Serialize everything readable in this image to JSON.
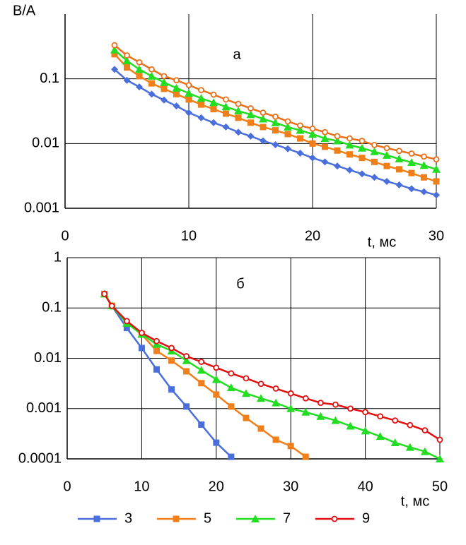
{
  "chart_data": [
    {
      "type": "line",
      "annotation": "а",
      "ylabel": "В/А",
      "xlabel": "t, мс",
      "log_y": true,
      "grid": true,
      "xlim": [
        0,
        30
      ],
      "xticks": [
        0,
        10,
        20,
        30
      ],
      "ylim": [
        0.001,
        1
      ],
      "yticks": [
        0.001,
        0.01,
        0.1
      ],
      "series": [
        {
          "color": "#4a6fdc",
          "marker": "diamond",
          "x": [
            4,
            5,
            6,
            7,
            8,
            9,
            10,
            11,
            12,
            13,
            14,
            15,
            16,
            17,
            18,
            19,
            20,
            21,
            22,
            23,
            24,
            25,
            26,
            27,
            28,
            29,
            30
          ],
          "values": [
            0.14,
            0.095,
            0.075,
            0.058,
            0.047,
            0.038,
            0.03,
            0.025,
            0.021,
            0.018,
            0.015,
            0.013,
            0.011,
            0.0096,
            0.0083,
            0.0071,
            0.006,
            0.0052,
            0.0045,
            0.0039,
            0.0034,
            0.003,
            0.0026,
            0.0023,
            0.002,
            0.0018,
            0.0016
          ]
        },
        {
          "color": "#f07f1a",
          "marker": "square",
          "x": [
            4,
            5,
            6,
            7,
            8,
            9,
            10,
            11,
            12,
            13,
            14,
            15,
            16,
            17,
            18,
            19,
            20,
            21,
            22,
            23,
            24,
            25,
            26,
            27,
            28,
            29,
            30
          ],
          "values": [
            0.24,
            0.15,
            0.11,
            0.085,
            0.07,
            0.058,
            0.048,
            0.04,
            0.034,
            0.029,
            0.025,
            0.021,
            0.018,
            0.016,
            0.014,
            0.012,
            0.01,
            0.0089,
            0.0078,
            0.0068,
            0.006,
            0.0052,
            0.0045,
            0.004,
            0.0035,
            0.003,
            0.0026
          ]
        },
        {
          "color": "#22dd22",
          "marker": "triangle",
          "x": [
            4,
            5,
            6,
            7,
            8,
            9,
            10,
            11,
            12,
            13,
            14,
            15,
            16,
            17,
            18,
            19,
            20,
            21,
            22,
            23,
            24,
            25,
            26,
            27,
            28,
            29,
            30
          ],
          "values": [
            0.28,
            0.19,
            0.14,
            0.11,
            0.088,
            0.072,
            0.06,
            0.05,
            0.043,
            0.037,
            0.032,
            0.028,
            0.024,
            0.021,
            0.018,
            0.016,
            0.014,
            0.012,
            0.011,
            0.0095,
            0.0085,
            0.0075,
            0.0066,
            0.0058,
            0.0051,
            0.0046,
            0.004
          ]
        },
        {
          "color": "#e8701a",
          "marker": "circle",
          "x": [
            4,
            5,
            6,
            7,
            8,
            9,
            10,
            11,
            12,
            13,
            14,
            15,
            16,
            17,
            18,
            19,
            20,
            21,
            22,
            23,
            24,
            25,
            26,
            27,
            28,
            29,
            30
          ],
          "values": [
            0.33,
            0.23,
            0.18,
            0.14,
            0.11,
            0.095,
            0.08,
            0.067,
            0.057,
            0.048,
            0.041,
            0.035,
            0.03,
            0.026,
            0.022,
            0.019,
            0.017,
            0.015,
            0.013,
            0.012,
            0.011,
            0.0095,
            0.0085,
            0.0077,
            0.007,
            0.0063,
            0.0057
          ]
        }
      ]
    },
    {
      "type": "line",
      "annotation": "б",
      "xlabel": "t, мс",
      "log_y": true,
      "grid": true,
      "xlim": [
        0,
        50
      ],
      "xticks": [
        0,
        10,
        20,
        30,
        40,
        50
      ],
      "ylim": [
        0.0001,
        1
      ],
      "yticks": [
        0.0001,
        0.001,
        0.01,
        0.1,
        1
      ],
      "series": [
        {
          "name": "3",
          "color": "#4a6fdc",
          "marker": "square",
          "x": [
            5,
            6,
            8,
            10,
            12,
            14,
            16,
            18,
            20,
            22
          ],
          "values": [
            0.19,
            0.11,
            0.04,
            0.016,
            0.006,
            0.0024,
            0.0011,
            0.00048,
            0.00021,
            0.00011
          ]
        },
        {
          "name": "5",
          "color": "#f07f1a",
          "marker": "square",
          "x": [
            5,
            6,
            8,
            10,
            12,
            14,
            16,
            18,
            20,
            22,
            24,
            26,
            28,
            30,
            32
          ],
          "values": [
            0.19,
            0.11,
            0.05,
            0.03,
            0.014,
            0.009,
            0.0055,
            0.0032,
            0.0019,
            0.0011,
            0.00065,
            0.0004,
            0.00024,
            0.00018,
            0.00011
          ]
        },
        {
          "name": "7",
          "color": "#22dd22",
          "marker": "triangle",
          "x": [
            5,
            6,
            8,
            10,
            12,
            14,
            16,
            18,
            20,
            22,
            24,
            26,
            28,
            30,
            32,
            34,
            36,
            38,
            40,
            42,
            44,
            46,
            48,
            50
          ],
          "values": [
            0.19,
            0.11,
            0.05,
            0.03,
            0.019,
            0.014,
            0.009,
            0.0058,
            0.0038,
            0.0026,
            0.002,
            0.0016,
            0.0013,
            0.001,
            0.00085,
            0.0007,
            0.00058,
            0.00045,
            0.00036,
            0.00028,
            0.00021,
            0.00017,
            0.00014,
            0.0001
          ]
        },
        {
          "name": "9",
          "color": "#e01010",
          "marker": "circle",
          "x": [
            5,
            6,
            8,
            10,
            12,
            14,
            16,
            18,
            20,
            22,
            24,
            26,
            28,
            30,
            32,
            34,
            36,
            38,
            40,
            42,
            44,
            46,
            48,
            50
          ],
          "values": [
            0.19,
            0.11,
            0.055,
            0.032,
            0.022,
            0.016,
            0.011,
            0.0085,
            0.0065,
            0.005,
            0.004,
            0.0031,
            0.0025,
            0.002,
            0.0016,
            0.0013,
            0.0012,
            0.001,
            0.00085,
            0.0007,
            0.00058,
            0.00047,
            0.00037,
            0.00024
          ]
        }
      ]
    }
  ]
}
